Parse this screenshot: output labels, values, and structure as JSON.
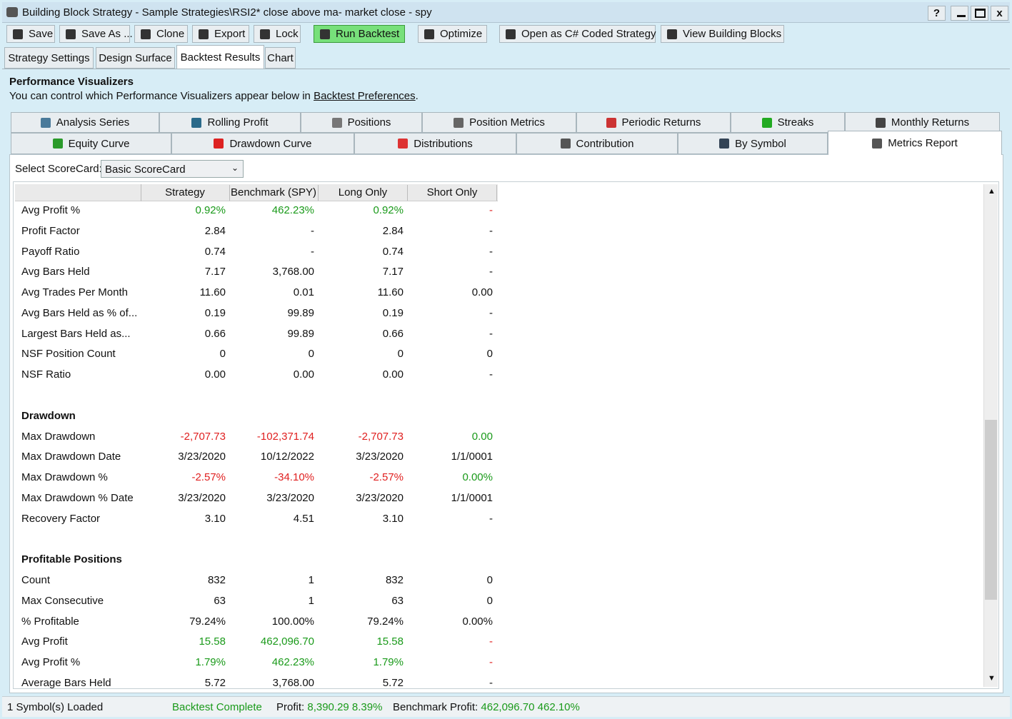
{
  "window": {
    "title": "Building Block Strategy - Sample Strategies\\RSI2* close above ma- market close - spy",
    "help": "?",
    "close": "x"
  },
  "toolbar": [
    "Save",
    "Save As ...",
    "Clone",
    "Export",
    "Lock",
    "Run Backtest",
    "Optimize",
    "Open as C# Coded Strategy",
    "View Building Blocks"
  ],
  "tabs": {
    "items": [
      "Strategy Settings",
      "Design Surface",
      "Backtest Results",
      "Chart"
    ],
    "active": 2
  },
  "header": {
    "title": "Performance Visualizers",
    "text": "You can control which Performance Visualizers appear below in",
    "link": "Backtest Preferences",
    "end": "."
  },
  "visualizers": {
    "row1": [
      "Analysis Series",
      "Rolling Profit",
      "Positions",
      "Position Metrics",
      "Periodic Returns",
      "Streaks",
      "Monthly Returns"
    ],
    "row2": [
      "Equity Curve",
      "Drawdown Curve",
      "Distributions",
      "Contribution",
      "By Symbol",
      "Metrics Report"
    ],
    "active": 5
  },
  "scorecard": {
    "label": "Select ScoreCard:",
    "value": "Basic ScoreCard"
  },
  "table": {
    "columns": [
      "Strategy",
      "Benchmark (SPY)",
      "Long Only",
      "Short Only"
    ],
    "rows": [
      {
        "label": "Avg Profit %",
        "values": [
          "0.92%",
          "462.23%",
          "0.92%",
          "-"
        ],
        "colors": [
          "green",
          "green",
          "green",
          "red"
        ]
      },
      {
        "label": "Profit Factor",
        "values": [
          "2.84",
          "-",
          "2.84",
          "-"
        ]
      },
      {
        "label": "Payoff Ratio",
        "values": [
          "0.74",
          "-",
          "0.74",
          "-"
        ]
      },
      {
        "label": "Avg Bars Held",
        "values": [
          "7.17",
          "3,768.00",
          "7.17",
          "-"
        ]
      },
      {
        "label": "Avg Trades Per Month",
        "values": [
          "11.60",
          "0.01",
          "11.60",
          "0.00"
        ]
      },
      {
        "label": "Avg Bars Held as % of...",
        "values": [
          "0.19",
          "99.89",
          "0.19",
          "-"
        ]
      },
      {
        "label": "Largest Bars Held as...",
        "values": [
          "0.66",
          "99.89",
          "0.66",
          "-"
        ]
      },
      {
        "label": "NSF Position Count",
        "values": [
          "0",
          "0",
          "0",
          "0"
        ]
      },
      {
        "label": "NSF Ratio",
        "values": [
          "0.00",
          "0.00",
          "0.00",
          "-"
        ]
      },
      {
        "section": "Drawdown"
      },
      {
        "label": "Max Drawdown",
        "values": [
          "-2,707.73",
          "-102,371.74",
          "-2,707.73",
          "0.00"
        ],
        "colors": [
          "red",
          "red",
          "red",
          "green"
        ]
      },
      {
        "label": "Max Drawdown Date",
        "values": [
          "3/23/2020",
          "10/12/2022",
          "3/23/2020",
          "1/1/0001"
        ]
      },
      {
        "label": "Max Drawdown %",
        "values": [
          "-2.57%",
          "-34.10%",
          "-2.57%",
          "0.00%"
        ],
        "colors": [
          "red",
          "red",
          "red",
          "green"
        ]
      },
      {
        "label": "Max Drawdown % Date",
        "values": [
          "3/23/2020",
          "3/23/2020",
          "3/23/2020",
          "1/1/0001"
        ]
      },
      {
        "label": "Recovery Factor",
        "values": [
          "3.10",
          "4.51",
          "3.10",
          "-"
        ]
      },
      {
        "section": "Profitable Positions"
      },
      {
        "label": "Count",
        "values": [
          "832",
          "1",
          "832",
          "0"
        ]
      },
      {
        "label": "Max Consecutive",
        "values": [
          "63",
          "1",
          "63",
          "0"
        ]
      },
      {
        "label": "% Profitable",
        "values": [
          "79.24%",
          "100.00%",
          "79.24%",
          "0.00%"
        ]
      },
      {
        "label": "Avg Profit",
        "values": [
          "15.58",
          "462,096.70",
          "15.58",
          "-"
        ],
        "colors": [
          "green",
          "green",
          "green",
          "red"
        ]
      },
      {
        "label": "Avg Profit %",
        "values": [
          "1.79%",
          "462.23%",
          "1.79%",
          "-"
        ],
        "colors": [
          "green",
          "green",
          "green",
          "red"
        ]
      },
      {
        "label": "Average Bars Held",
        "values": [
          "5.72",
          "3,768.00",
          "5.72",
          "-"
        ]
      }
    ]
  },
  "status": {
    "symbols": "1 Symbol(s) Loaded",
    "state": "Backtest Complete",
    "profit_label": "Profit:",
    "profit": "8,390.29 8.39%",
    "benchmark_label": "Benchmark Profit:",
    "benchmark": "462,096.70 462.10%"
  }
}
